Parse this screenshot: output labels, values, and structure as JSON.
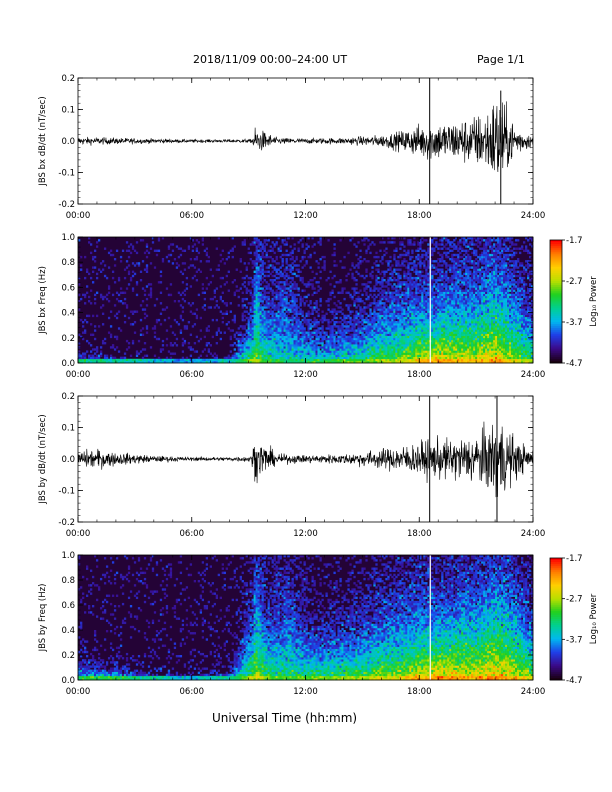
{
  "header": {
    "title": "2018/11/09  00:00–24:00 UT",
    "page": "Page 1/1"
  },
  "footer": {
    "xlabel": "Universal Time (hh:mm)"
  },
  "colorbar": {
    "label": "Log₁₀ Power",
    "ticks": [
      "-1.7",
      "-2.7",
      "-3.7",
      "-4.7"
    ],
    "range": [
      -4.7,
      -1.7
    ],
    "colors": [
      "#1a0012",
      "#3b0a8a",
      "#1f3fe8",
      "#00b8f0",
      "#00d090",
      "#20d020",
      "#b8e000",
      "#ffd000",
      "#ff8000",
      "#ff0000"
    ]
  },
  "chart_data": [
    {
      "type": "line",
      "title": "",
      "ylabel": "JBS bx dB/dt (nT/sec)",
      "xlabel": "",
      "x_ticks": [
        "00:00",
        "06:00",
        "12:00",
        "18:00",
        "24:00"
      ],
      "x_range": [
        0,
        24
      ],
      "ylim": [
        -0.2,
        0.2
      ],
      "y_ticks": [
        "0.2",
        "0.1",
        "0.0",
        "-0.1",
        "-0.2"
      ],
      "envelope": {
        "x": [
          0,
          2,
          4,
          6,
          8,
          9.15,
          9.3,
          9.8,
          10.5,
          12,
          14,
          16,
          17,
          18,
          18.5,
          19.5,
          20.5,
          21.5,
          22.2,
          22.7,
          23.3,
          24
        ],
        "amplitude": [
          0.012,
          0.01,
          0.007,
          0.005,
          0.005,
          0.006,
          0.04,
          0.03,
          0.01,
          0.008,
          0.01,
          0.018,
          0.03,
          0.05,
          0.06,
          0.06,
          0.07,
          0.09,
          0.16,
          0.08,
          0.04,
          0.015
        ]
      },
      "spikes": [
        {
          "x": 18.55,
          "ymin": -0.2,
          "ymax": 0.2
        },
        {
          "x": 22.3,
          "ymin": -0.2,
          "ymax": 0.16
        }
      ]
    },
    {
      "type": "heatmap",
      "title": "",
      "ylabel": "JBS bx Freq (Hz)",
      "xlabel": "",
      "x_ticks": [
        "00:00",
        "06:00",
        "12:00",
        "18:00",
        "24:00"
      ],
      "x_range": [
        0,
        24
      ],
      "ylim": [
        0,
        1.0
      ],
      "y_ticks": [
        "1.0",
        "0.8",
        "0.6",
        "0.4",
        "0.2",
        "0.0"
      ],
      "color_scale": [
        -4.7,
        -1.7
      ],
      "profile": {
        "x": [
          0,
          2,
          4,
          6,
          8,
          9.2,
          9.4,
          10,
          11,
          12,
          13,
          14,
          15,
          16,
          17,
          18,
          19,
          20,
          21,
          22,
          23,
          24
        ],
        "low_band_level": [
          -3.5,
          -3.6,
          -3.9,
          -4.0,
          -3.8,
          -3.0,
          -2.8,
          -3.3,
          -3.5,
          -3.5,
          -3.4,
          -3.3,
          -3.2,
          -3.0,
          -2.9,
          -2.6,
          -2.4,
          -2.5,
          -2.6,
          -2.4,
          -2.7,
          -3.0
        ],
        "extent_hz": [
          0.08,
          0.06,
          0.03,
          0.03,
          0.05,
          0.5,
          1.0,
          0.55,
          0.9,
          0.45,
          0.3,
          0.35,
          0.4,
          0.55,
          0.6,
          0.65,
          0.6,
          0.7,
          0.75,
          0.9,
          0.7,
          0.45
        ]
      },
      "features": [
        {
          "x": 9.3,
          "kind": "vertical-burst"
        },
        {
          "x": 18.55,
          "kind": "data-gap"
        }
      ]
    },
    {
      "type": "line",
      "title": "",
      "ylabel": "JBS by dB/dt (nT/sec)",
      "xlabel": "",
      "x_ticks": [
        "00:00",
        "06:00",
        "12:00",
        "18:00",
        "24:00"
      ],
      "x_range": [
        0,
        24
      ],
      "ylim": [
        -0.2,
        0.2
      ],
      "y_ticks": [
        "0.2",
        "0.1",
        "0.0",
        "-0.1",
        "-0.2"
      ],
      "envelope": {
        "x": [
          0,
          1,
          2,
          4,
          6,
          8,
          9.15,
          9.3,
          9.8,
          10.5,
          12,
          14,
          16,
          17,
          18,
          18.5,
          19.5,
          20.5,
          21.5,
          22.2,
          22.7,
          23.3,
          24
        ],
        "amplitude": [
          0.025,
          0.03,
          0.02,
          0.01,
          0.006,
          0.006,
          0.01,
          0.06,
          0.05,
          0.015,
          0.012,
          0.015,
          0.03,
          0.04,
          0.05,
          0.06,
          0.06,
          0.07,
          0.09,
          0.14,
          0.09,
          0.05,
          0.03
        ]
      },
      "spikes": [
        {
          "x": 18.55,
          "ymin": -0.2,
          "ymax": 0.2
        },
        {
          "x": 22.1,
          "ymin": -0.2,
          "ymax": 0.2
        }
      ]
    },
    {
      "type": "heatmap",
      "title": "",
      "ylabel": "JBS by Freq (Hz)",
      "xlabel": "",
      "x_ticks": [
        "00:00",
        "06:00",
        "12:00",
        "18:00",
        "24:00"
      ],
      "x_range": [
        0,
        24
      ],
      "ylim": [
        0,
        1.0
      ],
      "y_ticks": [
        "1.0",
        "0.8",
        "0.6",
        "0.4",
        "0.2",
        "0.0"
      ],
      "color_scale": [
        -4.7,
        -1.7
      ],
      "profile": {
        "x": [
          0,
          2,
          4,
          6,
          8,
          9.2,
          9.4,
          10,
          11,
          12,
          13,
          14,
          15,
          16,
          17,
          18,
          19,
          20,
          21,
          22,
          23,
          24
        ],
        "low_band_level": [
          -3.3,
          -3.4,
          -3.7,
          -3.9,
          -3.6,
          -2.9,
          -2.7,
          -3.1,
          -3.3,
          -3.2,
          -3.1,
          -3.0,
          -2.9,
          -2.8,
          -2.7,
          -2.5,
          -2.3,
          -2.4,
          -2.5,
          -2.3,
          -2.5,
          -2.8
        ],
        "extent_hz": [
          0.15,
          0.12,
          0.06,
          0.05,
          0.08,
          0.6,
          1.0,
          0.6,
          0.9,
          0.5,
          0.4,
          0.45,
          0.5,
          0.6,
          0.65,
          0.7,
          0.65,
          0.75,
          0.8,
          0.95,
          0.8,
          0.55
        ]
      },
      "features": [
        {
          "x": 9.3,
          "kind": "vertical-burst"
        },
        {
          "x": 18.55,
          "kind": "data-gap"
        }
      ]
    }
  ]
}
